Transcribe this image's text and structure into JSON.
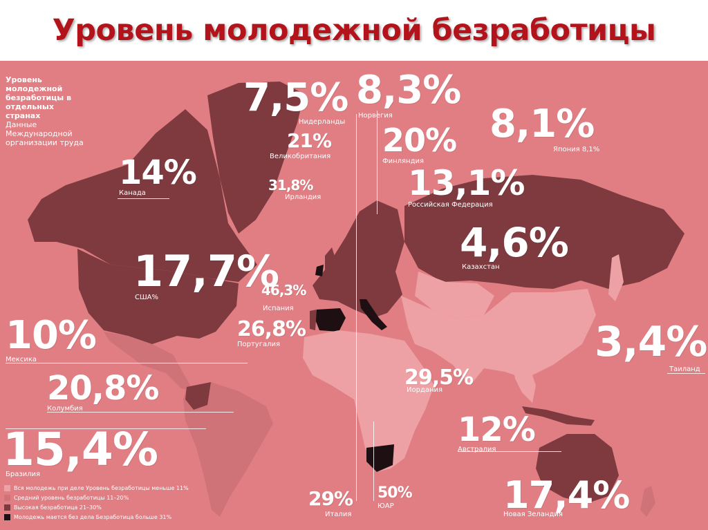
{
  "title": "Уровень молодежной безработицы",
  "sidebar": {
    "heading": "Уровень молодежной безработицы в отдельных странах",
    "note": "Данные Международной организации труда"
  },
  "colors": {
    "background": "#e07e83",
    "title": "#b3141c",
    "level_low": "#eea1a5",
    "level_medium": "#cf7378",
    "level_high": "#7e3a3f",
    "level_very_high": "#1e1012"
  },
  "callouts": [
    {
      "id": "netherlands",
      "value": "7,5%",
      "country": "Нидерланды"
    },
    {
      "id": "norway",
      "value": "8,3%",
      "country": "Норвегия"
    },
    {
      "id": "japan",
      "value": "8,1%",
      "country": "Япония 8,1%"
    },
    {
      "id": "uk",
      "value": "21%",
      "country": "Великобритания"
    },
    {
      "id": "finland",
      "value": "20%",
      "country": "Финляндия"
    },
    {
      "id": "canada",
      "value": "14%",
      "country": "Канада"
    },
    {
      "id": "russia",
      "value": "13,1%",
      "country": "Российская Федерация"
    },
    {
      "id": "ireland",
      "value": "31,8%",
      "country": "Ирландия"
    },
    {
      "id": "kazakhstan",
      "value": "4,6%",
      "country": "Казахстан"
    },
    {
      "id": "usa",
      "value": "17,7%",
      "country": "США%"
    },
    {
      "id": "spain",
      "value": "46,3%",
      "country": "Испания"
    },
    {
      "id": "portugal",
      "value": "26,8%",
      "country": "Португалия"
    },
    {
      "id": "mexico",
      "value": "10%",
      "country": "Мексика"
    },
    {
      "id": "thailand",
      "value": "3,4%",
      "country": "Таиланд"
    },
    {
      "id": "jordan",
      "value": "29,5%",
      "country": "Иордания"
    },
    {
      "id": "colombia",
      "value": "20,8%",
      "country": "Колумбия"
    },
    {
      "id": "australia",
      "value": "12%",
      "country": "Австралия"
    },
    {
      "id": "brazil",
      "value": "15,4%",
      "country": "Бразилия"
    },
    {
      "id": "new_zealand",
      "value": "17,4%",
      "country": "Новая Зеландия"
    },
    {
      "id": "italy",
      "value": "29%",
      "country": "Италия"
    },
    {
      "id": "south_africa",
      "value": "50%",
      "country": "ЮАР"
    }
  ],
  "legend": [
    {
      "text": "Вся молодежь при деле Уровень безработицы меньше 11%",
      "color": "#eea1a5"
    },
    {
      "text": "Средний уровень безработицы 11–20%",
      "color": "#cf7378"
    },
    {
      "text": "Высокая безработица 21–30%",
      "color": "#7e3a3f"
    },
    {
      "text": "Молодежь мается без дела Безработица больше 31%",
      "color": "#1e1012"
    }
  ]
}
